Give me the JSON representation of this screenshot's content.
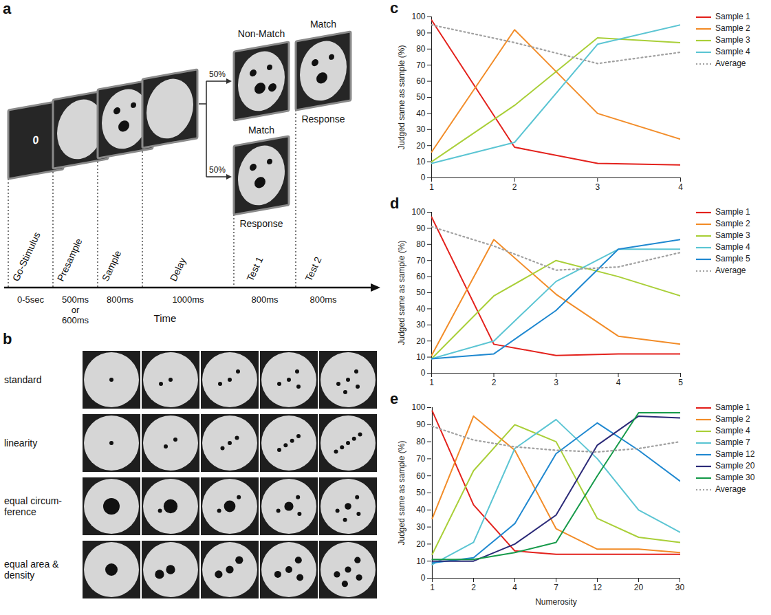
{
  "task_diagram": {
    "panel": "a",
    "go_symbol": "0",
    "sample": {
      "numerosity": 3
    },
    "branches": [
      {
        "probability": "50%",
        "test1": {
          "label": "Non-Match",
          "numerosity": 4
        },
        "test2": {
          "label": "Match",
          "numerosity": 3
        },
        "response": "Response"
      },
      {
        "probability": "50%",
        "test1": {
          "label": "Match",
          "numerosity": 3
        },
        "response": "Response"
      }
    ],
    "phases": [
      {
        "name": "Go-Stimulus",
        "duration": [
          "0-5sec"
        ]
      },
      {
        "name": "Presample",
        "duration": [
          "500ms",
          "or",
          "600ms"
        ]
      },
      {
        "name": "Sample",
        "duration": [
          "800ms"
        ]
      },
      {
        "name": "Delay",
        "duration": [
          "1000ms"
        ]
      },
      {
        "name": "Test 1",
        "duration": [
          "800ms"
        ]
      },
      {
        "name": "Test 2",
        "duration": [
          "800ms"
        ]
      }
    ],
    "axis_label": "Time"
  },
  "stimuli": {
    "panel": "b",
    "numerosities": [
      1,
      2,
      3,
      4,
      5
    ],
    "rows": [
      {
        "name": [
          "standard"
        ]
      },
      {
        "name": [
          "linearity"
        ]
      },
      {
        "name": [
          "equal circum-",
          "ference"
        ]
      },
      {
        "name": [
          "equal area &",
          "density"
        ]
      }
    ]
  },
  "chart_data": [
    {
      "panel": "c",
      "type": "line",
      "x": [
        1,
        2,
        3,
        4
      ],
      "xlim": [
        1,
        4
      ],
      "xticks": [
        1,
        2,
        3,
        4
      ],
      "ylim": [
        0,
        100
      ],
      "yticks": [
        0,
        10,
        20,
        30,
        40,
        50,
        60,
        70,
        80,
        90,
        100
      ],
      "y_label": "Judged same as sample (%)",
      "grid": false,
      "legend": "right",
      "series": [
        {
          "name": "Sample 1",
          "color": "#e3211c",
          "values": [
            98,
            19,
            9,
            8
          ]
        },
        {
          "name": "Sample 2",
          "color": "#f28c28",
          "values": [
            16,
            92,
            40,
            24
          ]
        },
        {
          "name": "Sample 3",
          "color": "#a9cf38",
          "values": [
            10,
            45,
            87,
            84
          ]
        },
        {
          "name": "Sample 4",
          "color": "#5bc5d3",
          "values": [
            9,
            22,
            83,
            95
          ]
        },
        {
          "name": "Average",
          "color": "#a0a0a0",
          "line_style": "dotted",
          "values": [
            95,
            84,
            71,
            78
          ]
        }
      ]
    },
    {
      "panel": "d",
      "type": "line",
      "x": [
        1,
        2,
        3,
        4,
        5
      ],
      "xlim": [
        1,
        5
      ],
      "xticks": [
        1,
        2,
        3,
        4,
        5
      ],
      "ylim": [
        0,
        100
      ],
      "yticks": [
        0,
        10,
        20,
        30,
        40,
        50,
        60,
        70,
        80,
        90,
        100
      ],
      "y_label": "Judged same as sample (%)",
      "grid": false,
      "legend": "right",
      "series": [
        {
          "name": "Sample 1",
          "color": "#e3211c",
          "values": [
            97,
            18,
            11,
            12,
            12
          ]
        },
        {
          "name": "Sample 2",
          "color": "#f28c28",
          "values": [
            11,
            83,
            49,
            23,
            18
          ]
        },
        {
          "name": "Sample 3",
          "color": "#a9cf38",
          "values": [
            9,
            48,
            70,
            60,
            48
          ]
        },
        {
          "name": "Sample 4",
          "color": "#5bc5d3",
          "values": [
            9,
            20,
            57,
            77,
            77
          ]
        },
        {
          "name": "Sample 5",
          "color": "#1f88d0",
          "values": [
            9,
            12,
            39,
            77,
            83
          ]
        },
        {
          "name": "Average",
          "color": "#a0a0a0",
          "line_style": "dotted",
          "values": [
            91,
            79,
            64,
            66,
            75
          ]
        }
      ]
    },
    {
      "panel": "e",
      "type": "line",
      "categories": [
        1,
        2,
        4,
        7,
        12,
        20,
        30
      ],
      "ylim": [
        0,
        100
      ],
      "yticks": [
        0,
        10,
        20,
        30,
        40,
        50,
        60,
        70,
        80,
        90,
        100
      ],
      "x_label": "Numerosity",
      "y_label": "Judged same as sample (%)",
      "grid": false,
      "legend": "right",
      "series": [
        {
          "name": "Sample 1",
          "color": "#e3211c",
          "values": [
            98,
            43,
            16,
            14,
            14,
            14,
            14
          ]
        },
        {
          "name": "Sample 2",
          "color": "#f28c28",
          "values": [
            35,
            95,
            75,
            29,
            17,
            17,
            15
          ]
        },
        {
          "name": "Sample 4",
          "color": "#a9cf38",
          "values": [
            14,
            63,
            90,
            80,
            35,
            24,
            21
          ]
        },
        {
          "name": "Sample 7",
          "color": "#5bc5d3",
          "values": [
            8,
            21,
            76,
            93,
            70,
            40,
            27
          ]
        },
        {
          "name": "Sample 12",
          "color": "#1f88d0",
          "values": [
            9,
            12,
            32,
            73,
            91,
            75,
            57
          ]
        },
        {
          "name": "Sample 20",
          "color": "#2b2a78",
          "values": [
            10,
            10,
            20,
            37,
            78,
            95,
            94
          ]
        },
        {
          "name": "Sample 30",
          "color": "#169a4a",
          "values": [
            11,
            11,
            15,
            21,
            60,
            97,
            97
          ]
        },
        {
          "name": "Average",
          "color": "#a0a0a0",
          "line_style": "dotted",
          "values": [
            89,
            81,
            77,
            75,
            74,
            76,
            80
          ]
        }
      ]
    }
  ]
}
